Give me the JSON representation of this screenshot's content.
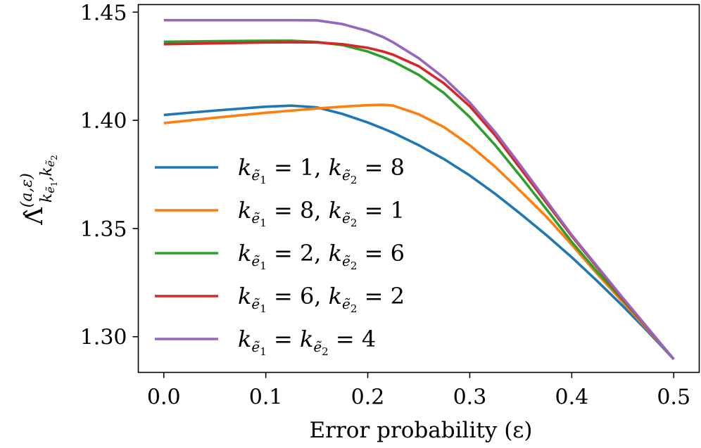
{
  "chart_data": {
    "type": "line",
    "xlabel": "Error probability (ε)",
    "ylabel": {
      "base": "Λ̂",
      "sup": "(a,ε)",
      "sub": "k",
      "sub_parts": [
        "ẽ",
        "1",
        ",k",
        "ẽ",
        "2"
      ]
    },
    "xlim": [
      -0.025,
      0.525
    ],
    "ylim": [
      1.2835,
      1.4535
    ],
    "xticks": [
      0.0,
      0.1,
      0.2,
      0.3,
      0.4,
      0.5
    ],
    "xtick_labels": [
      "0.0",
      "0.1",
      "0.2",
      "0.3",
      "0.4",
      "0.5"
    ],
    "yticks": [
      1.3,
      1.35,
      1.4,
      1.45
    ],
    "ytick_labels": [
      "1.30",
      "1.35",
      "1.40",
      "1.45"
    ],
    "grid": false,
    "legend_position": "left",
    "x": [
      0.0,
      0.05,
      0.1,
      0.125,
      0.15,
      0.175,
      0.2,
      0.215,
      0.225,
      0.25,
      0.275,
      0.3,
      0.325,
      0.35,
      0.375,
      0.4,
      0.425,
      0.45,
      0.475,
      0.5
    ],
    "series": [
      {
        "name": "k_{ẽ1} = 1, k_{ẽ2} = 8",
        "legend": {
          "k1": "1",
          "k2": "8"
        },
        "color": "#1f77b4",
        "values": [
          1.4025,
          1.4045,
          1.4063,
          1.4068,
          1.406,
          1.403,
          1.399,
          1.3962,
          1.3942,
          1.3885,
          1.382,
          1.3745,
          1.366,
          1.3567,
          1.347,
          1.3367,
          1.3257,
          1.3142,
          1.3022,
          1.2896
        ]
      },
      {
        "name": "k_{ẽ1} = 8, k_{ẽ2} = 1",
        "legend": {
          "k1": "8",
          "k2": "1"
        },
        "color": "#ff7f0e",
        "values": [
          1.3987,
          1.4012,
          1.4035,
          1.4045,
          1.4055,
          1.4063,
          1.407,
          1.4072,
          1.4068,
          1.4028,
          1.3968,
          1.3885,
          1.3785,
          1.3672,
          1.3555,
          1.3425,
          1.329,
          1.316,
          1.303,
          1.2896
        ]
      },
      {
        "name": "k_{ẽ1} = 2, k_{ẽ2} = 6",
        "legend": {
          "k1": "2",
          "k2": "6"
        },
        "color": "#2ca02c",
        "values": [
          1.4363,
          1.4366,
          1.4368,
          1.4368,
          1.4362,
          1.4348,
          1.4318,
          1.4292,
          1.4272,
          1.421,
          1.4125,
          1.4015,
          1.3885,
          1.374,
          1.359,
          1.3438,
          1.33,
          1.317,
          1.3035,
          1.2896
        ]
      },
      {
        "name": "k_{ẽ1} = 6, k_{ẽ2} = 2",
        "legend": {
          "k1": "6",
          "k2": "2"
        },
        "color": "#d62728",
        "values": [
          1.4352,
          1.4356,
          1.436,
          1.4361,
          1.436,
          1.4352,
          1.4335,
          1.4318,
          1.4303,
          1.425,
          1.417,
          1.4065,
          1.393,
          1.3775,
          1.362,
          1.3465,
          1.332,
          1.3175,
          1.3035,
          1.2896
        ]
      },
      {
        "name": "k_{ẽ1} = k_{ẽ2} = 4",
        "legend": {
          "k1": "",
          "k2": "4"
        },
        "color": "#9467bd",
        "values": [
          1.4463,
          1.4463,
          1.4463,
          1.4463,
          1.4462,
          1.4445,
          1.4413,
          1.4385,
          1.436,
          1.4287,
          1.4195,
          1.4082,
          1.3945,
          1.379,
          1.363,
          1.347,
          1.3325,
          1.318,
          1.3038,
          1.2896
        ]
      }
    ]
  }
}
